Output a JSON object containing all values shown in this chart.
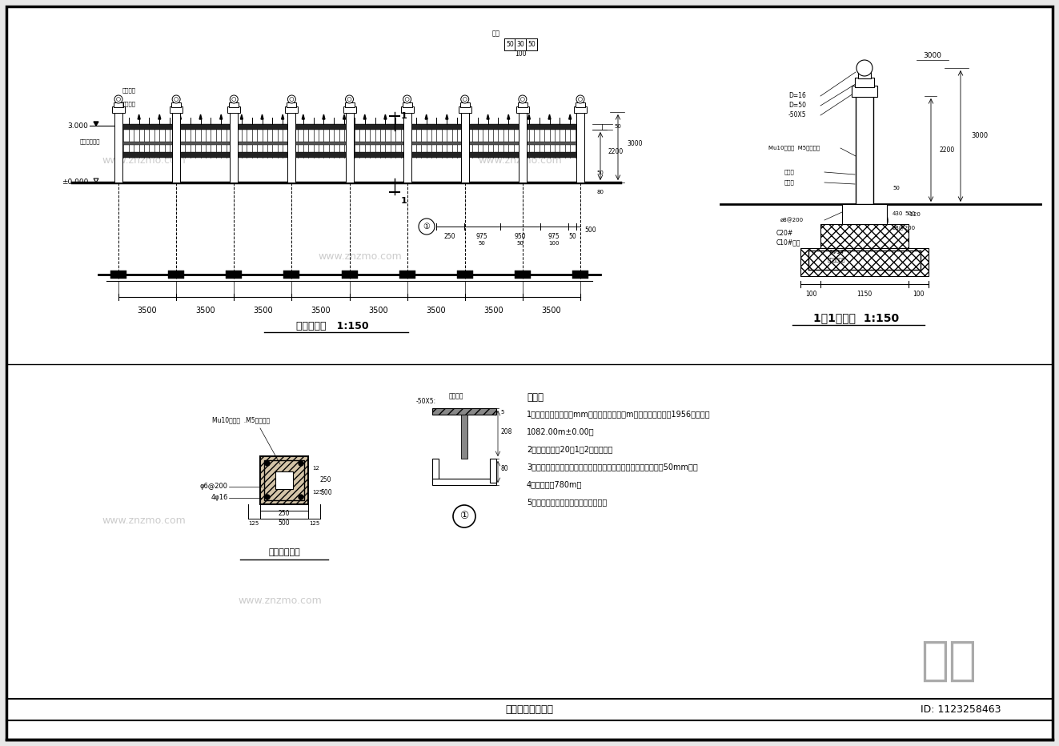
{
  "bg_color": "#e8e8e8",
  "paper_color": "#ffffff",
  "title_bottom": "道路绕区围墙详图",
  "id_text": "ID: 1123258463",
  "elevation_view_title": "围墙立面图   1:150",
  "section_view_title": "1－1剖面图  1:150",
  "column_section_title": "柱子剖面详图",
  "note_title": "说明：",
  "notes": [
    "1、本分图标注单位为mm，相对标高单位为m，取整平后地面折1956黄海高程",
    "1082.00m±0.00；",
    "2、砌墙厚度为20厚1：2水泥砂浆；",
    "3、围墙构柱、防风柱及大门处、基础和地梁相应放大（柱外退余50mm）；",
    "4、围墙总长780m；",
    "5、本说明未尽事宜以相关规范为准。"
  ],
  "span_dims": [
    "3500",
    "3500",
    "3500",
    "3500",
    "3500",
    "3500",
    "3500",
    "3500"
  ],
  "znzmo_text": "知末",
  "watermark_text": "www.znzmo.com"
}
